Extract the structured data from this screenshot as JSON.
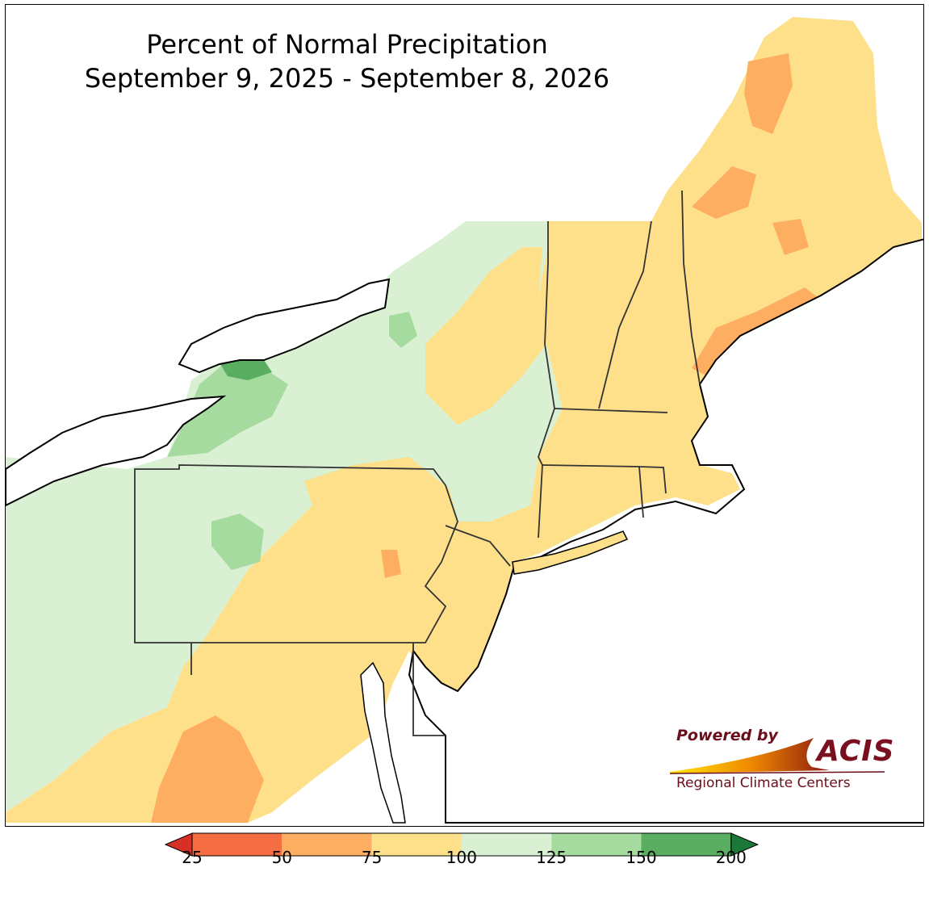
{
  "title": {
    "line1": "Percent of Normal Precipitation",
    "line2": "September 9, 2025 - September 8, 2026"
  },
  "colors": {
    "lt25": "#d73027",
    "c25_50": "#f46d43",
    "c50_75": "#fdae61",
    "c75_100": "#fee08b",
    "c100_125": "#d9f0d3",
    "c125_150": "#a6dba0",
    "c150_200": "#5aae61",
    "gt200": "#1b7837",
    "water": "#ffffff",
    "border": "#000000"
  },
  "legend": {
    "ticks": [
      "25",
      "50",
      "75",
      "100",
      "125",
      "150",
      "200"
    ],
    "bins": [
      {
        "from": 25,
        "to": 50,
        "color": "#f46d43"
      },
      {
        "from": 50,
        "to": 75,
        "color": "#fdae61"
      },
      {
        "from": 75,
        "to": 100,
        "color": "#fee08b"
      },
      {
        "from": 100,
        "to": 125,
        "color": "#d9f0d3"
      },
      {
        "from": 125,
        "to": 150,
        "color": "#a6dba0"
      },
      {
        "from": 150,
        "to": 200,
        "color": "#5aae61"
      }
    ],
    "under_color": "#d73027",
    "over_color": "#1b7837"
  },
  "logo": {
    "powered_by": "Powered by",
    "name": "ACIS",
    "subtitle": "Regional Climate Centers"
  }
}
